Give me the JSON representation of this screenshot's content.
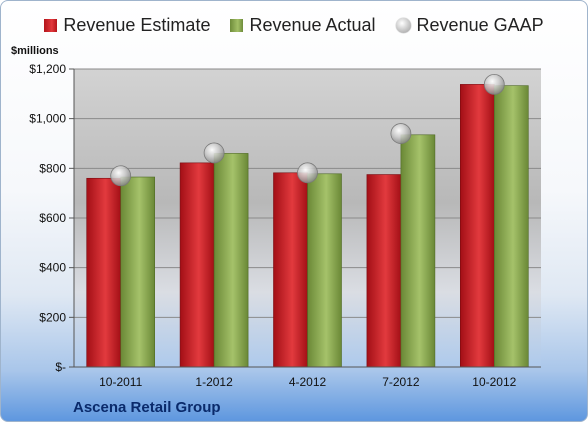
{
  "chart_data": {
    "type": "bar",
    "unit_label": "$millions",
    "footer_label": "Ascena Retail Group",
    "categories": [
      "10-2011",
      "1-2012",
      "4-2012",
      "7-2012",
      "10-2012"
    ],
    "series": [
      {
        "name": "Revenue Estimate",
        "kind": "bar",
        "color": "#c8222a",
        "values": [
          760,
          822,
          782,
          775,
          1138
        ]
      },
      {
        "name": "Revenue Actual",
        "kind": "bar",
        "color": "#8fae56",
        "values": [
          765,
          860,
          778,
          935,
          1133
        ]
      },
      {
        "name": "Revenue GAAP",
        "kind": "marker",
        "color": "#b8b8b8",
        "values": [
          770,
          862,
          782,
          940,
          1138
        ]
      }
    ],
    "y_ticks": [
      "$-",
      "$200",
      "$400",
      "$600",
      "$800",
      "$1,000",
      "$1,200"
    ],
    "ylim": [
      0,
      1200
    ],
    "grid": true,
    "legend_position": "top"
  }
}
